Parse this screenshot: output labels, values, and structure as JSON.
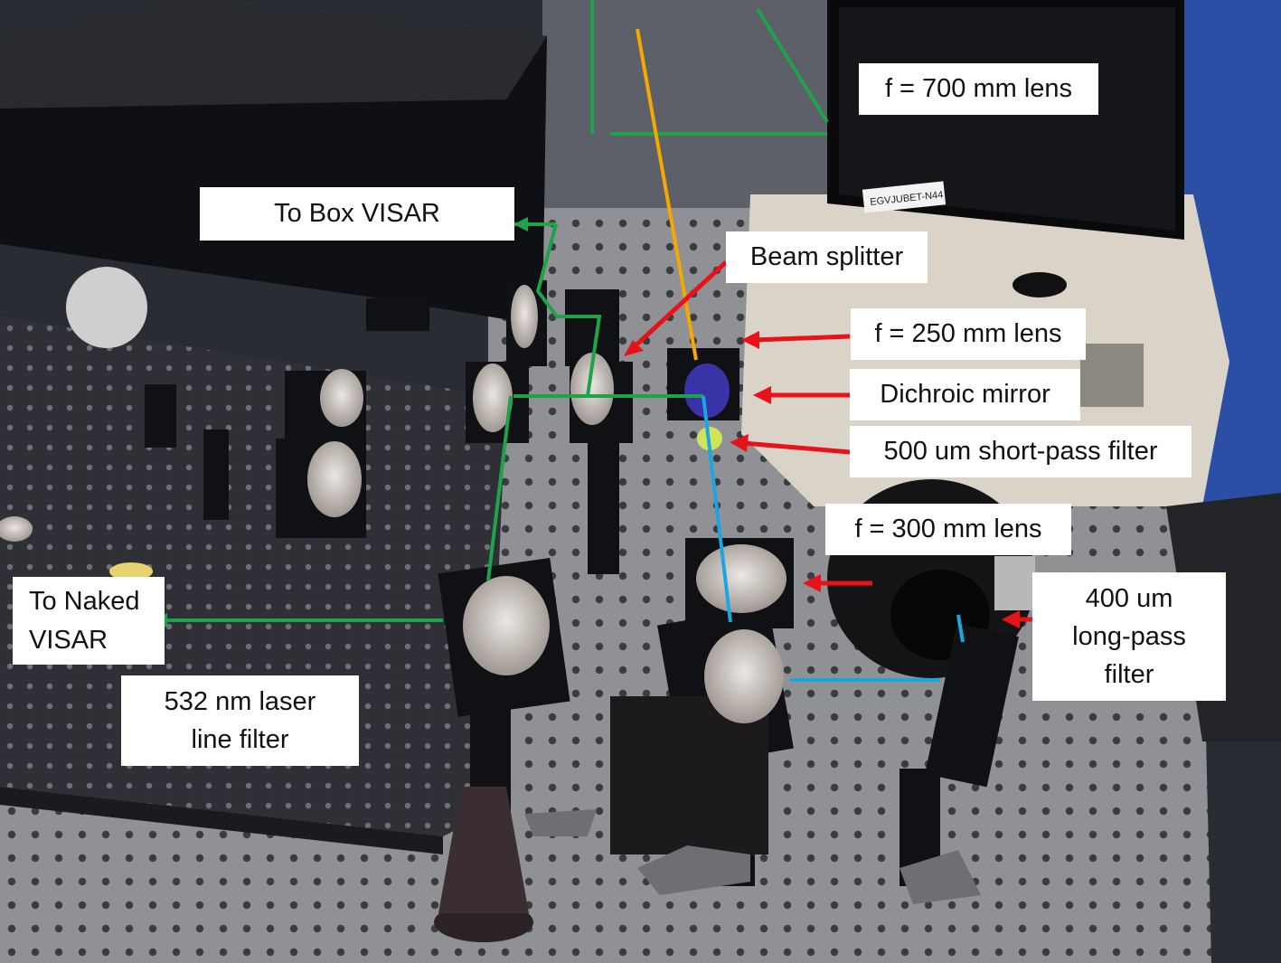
{
  "photo": {
    "subject": "VISAR optical setup on optical breadboard",
    "colors": {
      "green_beam": "#1fa34a",
      "blue_beam": "#1ba6e0",
      "orange_beam": "#f5a800",
      "arrow_red": "#e8121b",
      "label_bg": "#ffffff"
    }
  },
  "labels": {
    "lens_700": "f = 700 mm lens",
    "to_box_visar": "To Box VISAR",
    "beam_splitter": "Beam splitter",
    "lens_250": "f = 250 mm lens",
    "dichroic_mirror": "Dichroic mirror",
    "short_pass_filter": "500 um short-pass filter",
    "lens_300": "f = 300 mm lens",
    "to_naked_visar": "To Naked\nVISAR",
    "long_pass_filter": "400 um\nlong-pass\nfilter",
    "laser_line_filter": "532 nm laser\nline filter"
  },
  "monitor_tag": "EGVJUBET-N44"
}
